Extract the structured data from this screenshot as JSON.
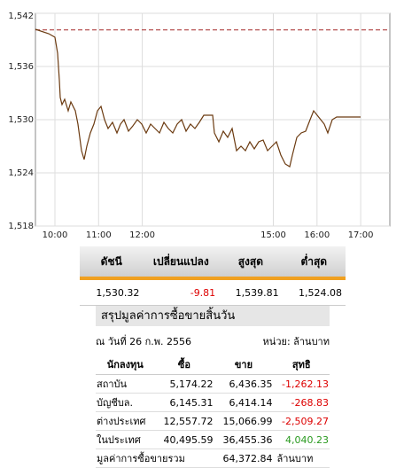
{
  "chart_data": {
    "type": "line",
    "x": [
      9.554,
      9.858,
      10.0,
      10.061,
      10.101,
      10.122,
      10.162,
      10.223,
      10.304,
      10.365,
      10.467,
      10.527,
      10.609,
      10.669,
      10.73,
      10.811,
      10.892,
      10.974,
      11.055,
      11.136,
      11.217,
      11.318,
      11.42,
      11.501,
      11.582,
      11.684,
      11.785,
      11.886,
      11.988,
      12.089,
      12.191,
      12.292,
      12.394,
      12.495,
      12.596,
      12.698,
      12.799,
      12.901,
      13.002,
      13.103,
      13.205,
      13.306,
      13.408,
      13.611,
      13.651,
      13.753,
      13.854,
      13.955,
      14.057,
      14.158,
      14.26,
      14.361,
      14.462,
      14.564,
      14.665,
      14.767,
      14.868,
      14.97,
      15.071,
      15.172,
      15.274,
      15.375,
      15.436,
      15.538,
      15.639,
      15.74,
      15.842,
      15.923,
      16.004,
      16.085,
      16.166,
      16.247,
      16.349,
      16.45,
      16.998
    ],
    "series": [
      {
        "color": "#6b3a10",
        "values": [
          1540.2,
          1539.7,
          1539.3,
          1537.5,
          1534.5,
          1532.5,
          1531.7,
          1532.3,
          1531.0,
          1532.0,
          1531.0,
          1529.5,
          1526.5,
          1525.5,
          1527.0,
          1528.5,
          1529.5,
          1531.0,
          1531.5,
          1530.0,
          1529.0,
          1529.7,
          1528.5,
          1529.5,
          1530.0,
          1528.7,
          1529.3,
          1530.0,
          1529.5,
          1528.5,
          1529.5,
          1529.0,
          1528.5,
          1529.7,
          1529.0,
          1528.5,
          1529.5,
          1530.0,
          1528.7,
          1529.5,
          1529.0,
          1529.7,
          1530.5,
          1530.5,
          1528.5,
          1527.5,
          1528.7,
          1528.0,
          1529.0,
          1526.5,
          1527.0,
          1526.5,
          1527.5,
          1526.7,
          1527.5,
          1527.7,
          1526.5,
          1527.0,
          1527.5,
          1526.0,
          1525.0,
          1524.7,
          1526.0,
          1528.0,
          1528.5,
          1528.7,
          1530.0,
          1531.0,
          1530.5,
          1530.0,
          1529.5,
          1528.5,
          1530.0,
          1530.3,
          1530.3
        ]
      }
    ],
    "reference_line": {
      "value": 1540.13,
      "color": "#a52a2a"
    },
    "xlim": [
      9.554,
      17.667
    ],
    "xticks": [
      {
        "value": 10,
        "label": "10:00"
      },
      {
        "value": 11,
        "label": "11:00"
      },
      {
        "value": 12,
        "label": "12:00"
      },
      {
        "value": 15,
        "label": "15:00"
      },
      {
        "value": 16,
        "label": "16:00"
      },
      {
        "value": 17,
        "label": "17:00"
      }
    ],
    "ylim": [
      1518,
      1542
    ],
    "yticks": [
      {
        "value": 1518,
        "label": "1,518"
      },
      {
        "value": 1524,
        "label": "1,524"
      },
      {
        "value": 1530,
        "label": "1,530"
      },
      {
        "value": 1536,
        "label": "1,536"
      },
      {
        "value": 1542,
        "label": "1,542"
      }
    ],
    "grid": true
  },
  "index_table": {
    "header": [
      "ดัชนี",
      "เปลี่ยนแปลง",
      "สูงสุด",
      "ต่ำสุด"
    ],
    "row": [
      "1,530.32",
      "-9.81",
      "1,539.81",
      "1,524.08"
    ]
  },
  "summary": {
    "title": "สรุปมูลค่าการซื้อขายสิ้นวัน",
    "date": "ณ วันที่ 26 ก.พ. 2556",
    "unit": "หน่วย: ล้านบาท",
    "header": [
      "นักลงทุน",
      "ซื้อ",
      "ขาย",
      "สุทธิ"
    ],
    "rows": [
      [
        "สถาบัน",
        "5,174.22",
        "6,436.35",
        "-1,262.13"
      ],
      [
        "บัญชีบล.",
        "6,145.31",
        "6,414.14",
        "-268.83"
      ],
      [
        "ต่างประเทศ",
        "12,557.72",
        "15,066.99",
        "-2,509.27"
      ],
      [
        "ในประเทศ",
        "40,495.59",
        "36,455.36",
        "4,040.23"
      ]
    ],
    "total": [
      "มูลค่าการซื้อขายรวม",
      "64,372.84",
      "ล้านบาท"
    ]
  }
}
